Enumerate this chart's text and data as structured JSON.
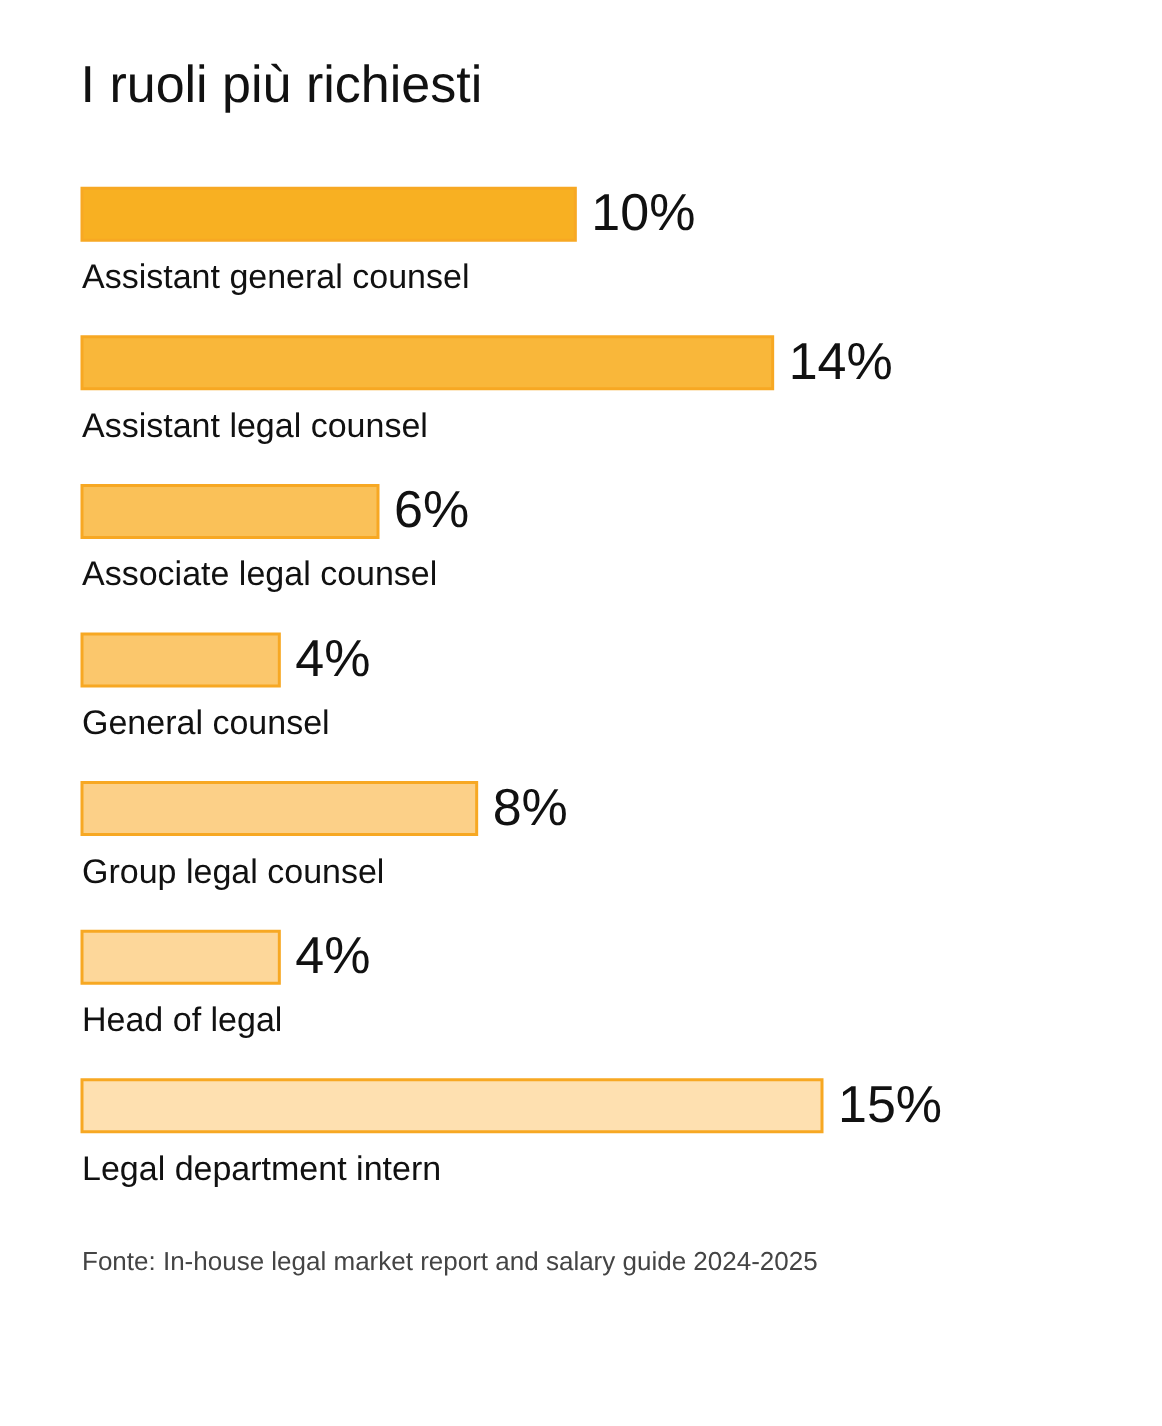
{
  "chart_data": {
    "type": "bar",
    "orientation": "horizontal",
    "title": "I ruoli più richiesti",
    "categories": [
      "Assistant general counsel",
      "Assistant legal counsel",
      "Associate legal counsel",
      "General counsel",
      "Group legal counsel",
      "Head of legal",
      "Legal department intern"
    ],
    "values": [
      10,
      14,
      6,
      4,
      8,
      4,
      15
    ],
    "value_labels": [
      "10%",
      "14%",
      "6%",
      "4%",
      "8%",
      "4%",
      "15%"
    ],
    "colors": [
      "#f8b022",
      "#f9b73a",
      "#fac158",
      "#fbc76c",
      "#fcd088",
      "#fdd79a",
      "#fee0b0"
    ],
    "annotations": [
      "Fonte: In-house legal market report and salary guide 2024-2025"
    ]
  }
}
